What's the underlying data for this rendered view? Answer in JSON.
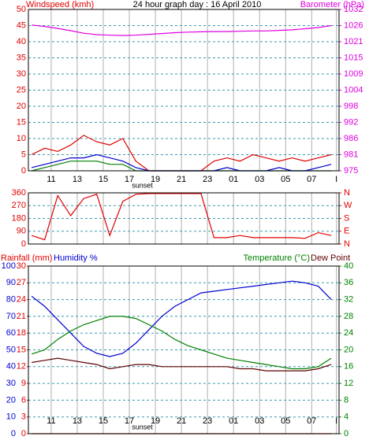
{
  "chart_data": [
    {
      "type": "line",
      "title": "24 hour graph day : 16 April 2010",
      "ylabel": "Windspeed (kmh)",
      "y2label": "Barometer (hPa)",
      "ycolor": "#e00000",
      "y2color": "#e000e0",
      "x": [
        9.5,
        10.5,
        11.5,
        12.5,
        13.5,
        14.5,
        15.5,
        16.5,
        17.5,
        18.5,
        19.5,
        20.5,
        21.5,
        22.5,
        23.5,
        24.5,
        25.5,
        26.5,
        27.5,
        28.5,
        29.5,
        30.5,
        31.5,
        32.5
      ],
      "xlim": [
        9.25,
        33.1
      ],
      "xticks": [
        11,
        13,
        15,
        17,
        19,
        21,
        23,
        {
          "value": 25,
          "label": "01"
        },
        {
          "value": 27,
          "label": "03"
        },
        {
          "value": 29,
          "label": "05"
        },
        {
          "value": 31,
          "label": "07"
        },
        {
          "value": 32.9,
          "label": "I"
        }
      ],
      "ylim": [
        0,
        50
      ],
      "yticks": [
        0,
        5,
        10,
        15,
        20,
        25,
        30,
        35,
        40,
        45,
        50
      ],
      "y2lim": [
        975,
        1032
      ],
      "y2ticks": [
        975,
        {
          "value": 980.7,
          "label": "981"
        },
        {
          "value": 986.4,
          "label": "986"
        },
        {
          "value": 992.1,
          "label": "992"
        },
        {
          "value": 997.8,
          "label": "998"
        },
        {
          "value": 1003.5,
          "label": "1004"
        },
        {
          "value": 1009.2,
          "label": "1009"
        },
        {
          "value": 1014.9,
          "label": "1015"
        },
        {
          "value": 1020.6,
          "label": "1021"
        },
        {
          "value": 1026.3,
          "label": "1026"
        },
        1032
      ],
      "grid": true,
      "annotations": [
        {
          "text": "sunset",
          "x": 18
        }
      ],
      "series": [
        {
          "color": "#e000e0",
          "axis": "y2",
          "values": [
            1026.5,
            1026,
            1025.3,
            1024.5,
            1023.6,
            1023.1,
            1022.9,
            1022.8,
            1022.9,
            1023.2,
            1023.5,
            1023.8,
            1024,
            1024.1,
            1024.2,
            1024.2,
            1024.3,
            1024.4,
            1024.4,
            1024.6,
            1024.8,
            1025.2,
            1025.6,
            1026.3
          ]
        },
        {
          "color": "#e00000",
          "axis": "y",
          "values": [
            5,
            7,
            6,
            8,
            11,
            9,
            8,
            10,
            3,
            0,
            0,
            0,
            0,
            0,
            3,
            4,
            3,
            5,
            4,
            3,
            4,
            3,
            4,
            5
          ]
        },
        {
          "color": "#008000",
          "axis": "y",
          "values": [
            0,
            1,
            2,
            3,
            3,
            3,
            2,
            2,
            0,
            0,
            0,
            0,
            0,
            0,
            0,
            0,
            0,
            0,
            0,
            0,
            0,
            0,
            0,
            0
          ]
        },
        {
          "color": "#0000d0",
          "axis": "y",
          "values": [
            1,
            2,
            3,
            4,
            4,
            5,
            4,
            3,
            1,
            0,
            0,
            0,
            0,
            0,
            0,
            1,
            0,
            0,
            0,
            1,
            0,
            0,
            1,
            2
          ]
        }
      ]
    },
    {
      "type": "line",
      "ycolor": "#e00000",
      "y2color": "#e00000",
      "x": [
        9.5,
        10.5,
        11.5,
        12.5,
        13.5,
        14.5,
        15.5,
        16.5,
        17.5,
        18.5,
        19.5,
        20.5,
        21.5,
        22.5,
        23.5,
        24.5,
        25.5,
        26.5,
        27.5,
        28.5,
        29.5,
        30.5,
        31.5,
        32.5
      ],
      "xlim": [
        9.25,
        33.1
      ],
      "xticks": [
        11,
        13,
        15,
        17,
        19,
        21,
        23,
        25,
        27,
        29,
        31,
        32.9
      ],
      "ylim": [
        0,
        360
      ],
      "yticks": [
        0,
        90,
        180,
        270,
        360
      ],
      "y2lim": [
        0,
        360
      ],
      "y2ticks": [
        {
          "value": 0,
          "label": "N"
        },
        {
          "value": 90,
          "label": "E"
        },
        {
          "value": 180,
          "label": "S"
        },
        {
          "value": 270,
          "label": "W"
        },
        {
          "value": 360,
          "label": "N"
        }
      ],
      "grid": true,
      "series": [
        {
          "color": "#e00000",
          "axis": "y",
          "values": [
            60,
            30,
            340,
            200,
            320,
            350,
            60,
            300,
            350,
            355,
            355,
            355,
            355,
            355,
            45,
            45,
            60,
            45,
            45,
            45,
            45,
            40,
            80,
            60
          ]
        }
      ]
    },
    {
      "type": "line",
      "ylabel": "Humidity %",
      "y2label": "Temperature (°C)",
      "y3label": "Rainfall (mm)",
      "ycolor": "#0000d0",
      "y2color": "#008000",
      "y3color": "#e00000",
      "x": [
        9.5,
        10.5,
        11.5,
        12.5,
        13.5,
        14.5,
        15.5,
        16.5,
        17.5,
        18.5,
        19.5,
        20.5,
        21.5,
        22.5,
        23.5,
        24.5,
        25.5,
        26.5,
        27.5,
        28.5,
        29.5,
        30.5,
        31.5,
        32.5
      ],
      "xlim": [
        9.25,
        33.1
      ],
      "xticks": [
        11,
        13,
        15,
        17,
        19,
        21,
        23,
        {
          "value": 25,
          "label": "01"
        },
        {
          "value": 27,
          "label": "03"
        },
        {
          "value": 29,
          "label": "05"
        },
        {
          "value": 31,
          "label": "07"
        },
        {
          "value": 32.9,
          "label": "I"
        }
      ],
      "ylim": [
        0,
        100
      ],
      "yticks": [
        0,
        10,
        20,
        30,
        40,
        50,
        60,
        70,
        80,
        90,
        100
      ],
      "y2lim": [
        0,
        40
      ],
      "y2ticks": [
        0,
        4,
        8,
        12,
        16,
        20,
        24,
        28,
        32,
        36,
        40
      ],
      "y3lim": [
        0,
        30
      ],
      "y3ticks": [
        0,
        3,
        6,
        9,
        12,
        15,
        18,
        21,
        24,
        27,
        30
      ],
      "grid": true,
      "annotations": [
        {
          "text": "sunset",
          "x": 18
        }
      ],
      "series": [
        {
          "color": "#e00000",
          "axis": "y3",
          "values": [
            0,
            0,
            0,
            0,
            0,
            0,
            0,
            0,
            0,
            0,
            0,
            0,
            0,
            0,
            0,
            0,
            0,
            0,
            0,
            0,
            0,
            0,
            0,
            0
          ]
        },
        {
          "color": "#0000d0",
          "axis": "y",
          "values": [
            82,
            76,
            68,
            60,
            52,
            48,
            46,
            48,
            54,
            62,
            70,
            76,
            80,
            84,
            85,
            86,
            87,
            88,
            89,
            90,
            91,
            90,
            88,
            80
          ]
        },
        {
          "color": "#008000",
          "axis": "y2",
          "values": [
            19,
            20,
            22.5,
            24.5,
            26,
            27,
            28,
            28,
            27.5,
            26,
            24.5,
            22.5,
            21,
            20,
            19,
            18,
            17.5,
            17,
            16.5,
            16,
            15.5,
            15.5,
            16,
            18
          ]
        },
        {
          "name": "Dew Point",
          "color": "#600000",
          "axis": "y2",
          "values": [
            17,
            17.5,
            18,
            17.5,
            17,
            16.5,
            15.5,
            16,
            16.5,
            16.5,
            16,
            16,
            16,
            16,
            16,
            16,
            15.5,
            15.5,
            15,
            15,
            15,
            15,
            15.5,
            16.5
          ]
        }
      ]
    }
  ]
}
